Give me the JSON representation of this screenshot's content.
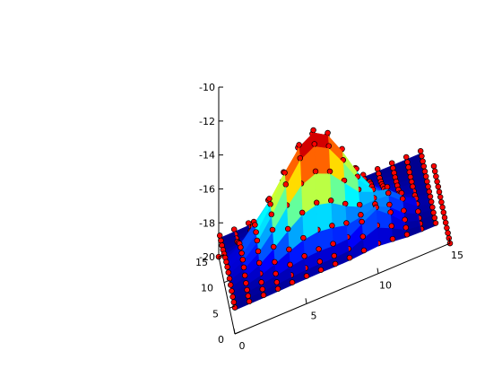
{
  "chart_data": {
    "type": "surface3d",
    "title": "",
    "xlabel": "",
    "ylabel": "",
    "zlabel": "",
    "xlim": [
      0,
      15
    ],
    "ylim": [
      0,
      15
    ],
    "zlim": [
      -20,
      -10
    ],
    "x_ticks": [
      "0",
      "5",
      "10",
      "15"
    ],
    "y_ticks": [
      "0",
      "5",
      "10",
      "15"
    ],
    "z_ticks": [
      "-20",
      "-18",
      "-16",
      "-14",
      "-12",
      "-10"
    ],
    "grid": false,
    "colormap": "jet",
    "colormap_stops": [
      "#00008f",
      "#0000ff",
      "#0080ff",
      "#00ffff",
      "#80ff80",
      "#ffff00",
      "#ff8000",
      "#ff0000",
      "#800000"
    ],
    "surface": {
      "grid_min": 0,
      "grid_max": 14,
      "grid_step": 1,
      "base_level": -18.6,
      "peak": {
        "x": 6.0,
        "y": 7.0,
        "value": -12.4,
        "spread": 2.4
      },
      "bumps": [
        {
          "x": 10.0,
          "y": 2.0,
          "value": -17.1,
          "spread": 1.0
        },
        {
          "x": 11.0,
          "y": 4.5,
          "value": -17.3,
          "spread": 1.1
        },
        {
          "x": 2.5,
          "y": 9.0,
          "value": -18.0,
          "spread": 1.0
        }
      ]
    },
    "scatter": {
      "name": "",
      "marker_color": "#ff0000",
      "edge_color": "#000000",
      "x_range": [
        0,
        15
      ],
      "y_range": [
        0,
        15
      ],
      "step": 1
    }
  }
}
